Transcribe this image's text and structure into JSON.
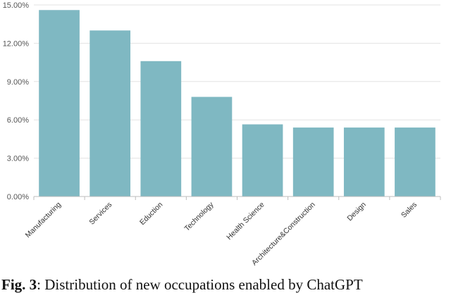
{
  "chart_data": {
    "type": "bar",
    "categories": [
      "Manufacturing",
      "Services",
      "Eduction",
      "Technology",
      "Health Science",
      "Architecture&Construction",
      "Design",
      "Sales"
    ],
    "values": [
      14.6,
      13.0,
      10.6,
      7.8,
      5.65,
      5.4,
      5.4,
      5.4
    ],
    "ylim": [
      0,
      15
    ],
    "yticks": [
      "0.00%",
      "3.00%",
      "6.00%",
      "9.00%",
      "12.00%",
      "15.00%"
    ],
    "ytick_values": [
      0,
      3,
      6,
      9,
      12,
      15
    ],
    "bar_color": "#7fb8c2",
    "grid": true
  },
  "caption": {
    "label": "Fig. 3",
    "text": ": Distribution of new occupations enabled by ChatGPT"
  }
}
